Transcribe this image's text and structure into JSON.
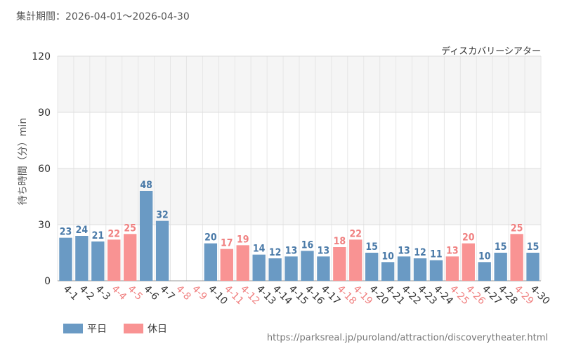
{
  "header": {
    "period_label": "集計期間：2026-04-01～2026-04-30",
    "attraction_name": "ディスカバリーシアター"
  },
  "footer": {
    "source_url": "https://parksreal.jp/puroland/attraction/discoverytheater.html"
  },
  "legend": {
    "weekday_label": "平日",
    "holiday_label": "休日"
  },
  "colors": {
    "weekday": "#6a9ac4",
    "holiday": "#f99393",
    "weekday_text": "#4a7aa8",
    "holiday_text": "#f08080",
    "grid": "#dddddd",
    "band": "#f5f5f5"
  },
  "chart_data": {
    "type": "bar",
    "ylabel": "待ち時間（分）min",
    "ylim": [
      0,
      120
    ],
    "yticks": [
      0,
      30,
      60,
      90,
      120
    ],
    "grid": true,
    "legend_position": "bottom-left",
    "categories": [
      "4-1",
      "4-2",
      "4-3",
      "4-4",
      "4-5",
      "4-6",
      "4-7",
      "4-8",
      "4-9",
      "4-10",
      "4-11",
      "4-12",
      "4-13",
      "4-14",
      "4-15",
      "4-16",
      "4-17",
      "4-18",
      "4-19",
      "4-20",
      "4-21",
      "4-22",
      "4-23",
      "4-24",
      "4-25",
      "4-26",
      "4-27",
      "4-28",
      "4-29",
      "4-30"
    ],
    "values": [
      23,
      24,
      21,
      22,
      25,
      48,
      32,
      null,
      null,
      20,
      17,
      19,
      14,
      12,
      13,
      16,
      13,
      18,
      22,
      15,
      10,
      13,
      12,
      11,
      13,
      20,
      10,
      15,
      25,
      15
    ],
    "day_type": [
      "weekday",
      "weekday",
      "weekday",
      "holiday",
      "holiday",
      "weekday",
      "weekday",
      "holiday",
      "holiday",
      "weekday",
      "holiday",
      "holiday",
      "weekday",
      "weekday",
      "weekday",
      "weekday",
      "weekday",
      "holiday",
      "holiday",
      "weekday",
      "weekday",
      "weekday",
      "weekday",
      "weekday",
      "holiday",
      "holiday",
      "weekday",
      "weekday",
      "holiday",
      "weekday"
    ]
  }
}
